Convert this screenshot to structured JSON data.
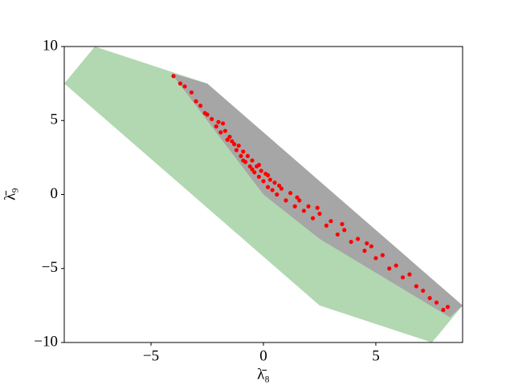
{
  "chart_data": {
    "type": "scatter",
    "x_label": "λ̄₈",
    "y_label": "λ̄₉",
    "xlim": [
      -8.86,
      8.86
    ],
    "ylim": [
      -10,
      10
    ],
    "xticks": [
      {
        "value": -5,
        "label": "−5"
      },
      0,
      5
    ],
    "yticks": [
      {
        "value": -10,
        "label": "−10"
      },
      {
        "value": -5,
        "label": "−5"
      },
      0,
      5,
      10
    ],
    "polygons": [
      {
        "color": "#b2d8b2",
        "x": [
          -8.86,
          -7.5,
          -2.5,
          8.86,
          7.5,
          2.5
        ],
        "y": [
          7.5,
          10,
          7.5,
          -7.5,
          -10,
          -7.5
        ]
      },
      {
        "color": "#a6a6a6",
        "x": [
          -4.1,
          -2.5,
          8.86,
          8.3,
          2.5,
          0,
          -1,
          -2.5
        ],
        "y": [
          8.2,
          7.5,
          -7.5,
          -8.3,
          -3,
          0,
          2,
          5
        ]
      }
    ],
    "series": [
      {
        "color": "#ff0000",
        "x": [
          -4,
          -3.7,
          -3.5,
          -3.2,
          -3,
          -2.8,
          -2.6,
          -2.5,
          -2.3,
          -2.1,
          -2,
          -1.9,
          -1.7,
          -1.6,
          -1.5,
          -1.3,
          -1.2,
          -1.1,
          -1,
          -0.9,
          -0.8,
          -0.7,
          -0.6,
          -0.5,
          -0.4,
          -0.3,
          -0.2,
          -0.1,
          0,
          0.1,
          0.2,
          0.3,
          0.4,
          0.5,
          0.6,
          0.8,
          1,
          1.2,
          1.4,
          1.6,
          1.8,
          2,
          2.2,
          2.5,
          2.8,
          3,
          3.3,
          3.6,
          3.9,
          4.2,
          4.5,
          4.8,
          5,
          5.3,
          5.6,
          5.9,
          6.2,
          6.5,
          6.8,
          7.1,
          7.4,
          7.7,
          8,
          8.2,
          -1.8,
          -1.4,
          -0.9,
          -0.5,
          -0.2,
          0.2,
          0.7,
          1.5,
          2.4,
          3.5,
          4.6
        ],
        "y": [
          8.0,
          7.5,
          7.3,
          6.9,
          6.3,
          6.0,
          5.5,
          5.4,
          5.1,
          4.6,
          4.9,
          4.2,
          4.3,
          3.7,
          3.9,
          3.4,
          3.0,
          3.3,
          2.6,
          2.9,
          2.2,
          2.6,
          1.9,
          2.3,
          1.5,
          1.9,
          1.2,
          1.6,
          0.9,
          1.4,
          0.5,
          1.0,
          0.3,
          0.8,
          0.0,
          0.4,
          -0.4,
          0.1,
          -0.8,
          -0.4,
          -1.1,
          -0.8,
          -1.6,
          -1.3,
          -2.1,
          -1.8,
          -2.7,
          -2.4,
          -3.2,
          -3.0,
          -3.8,
          -3.5,
          -4.3,
          -4.1,
          -5.0,
          -4.8,
          -5.6,
          -5.4,
          -6.2,
          -6.5,
          -7.0,
          -7.3,
          -7.8,
          -7.6,
          4.8,
          3.6,
          2.3,
          1.7,
          2.0,
          1.3,
          0.6,
          -0.2,
          -0.9,
          -2.0,
          -3.3
        ]
      }
    ]
  }
}
